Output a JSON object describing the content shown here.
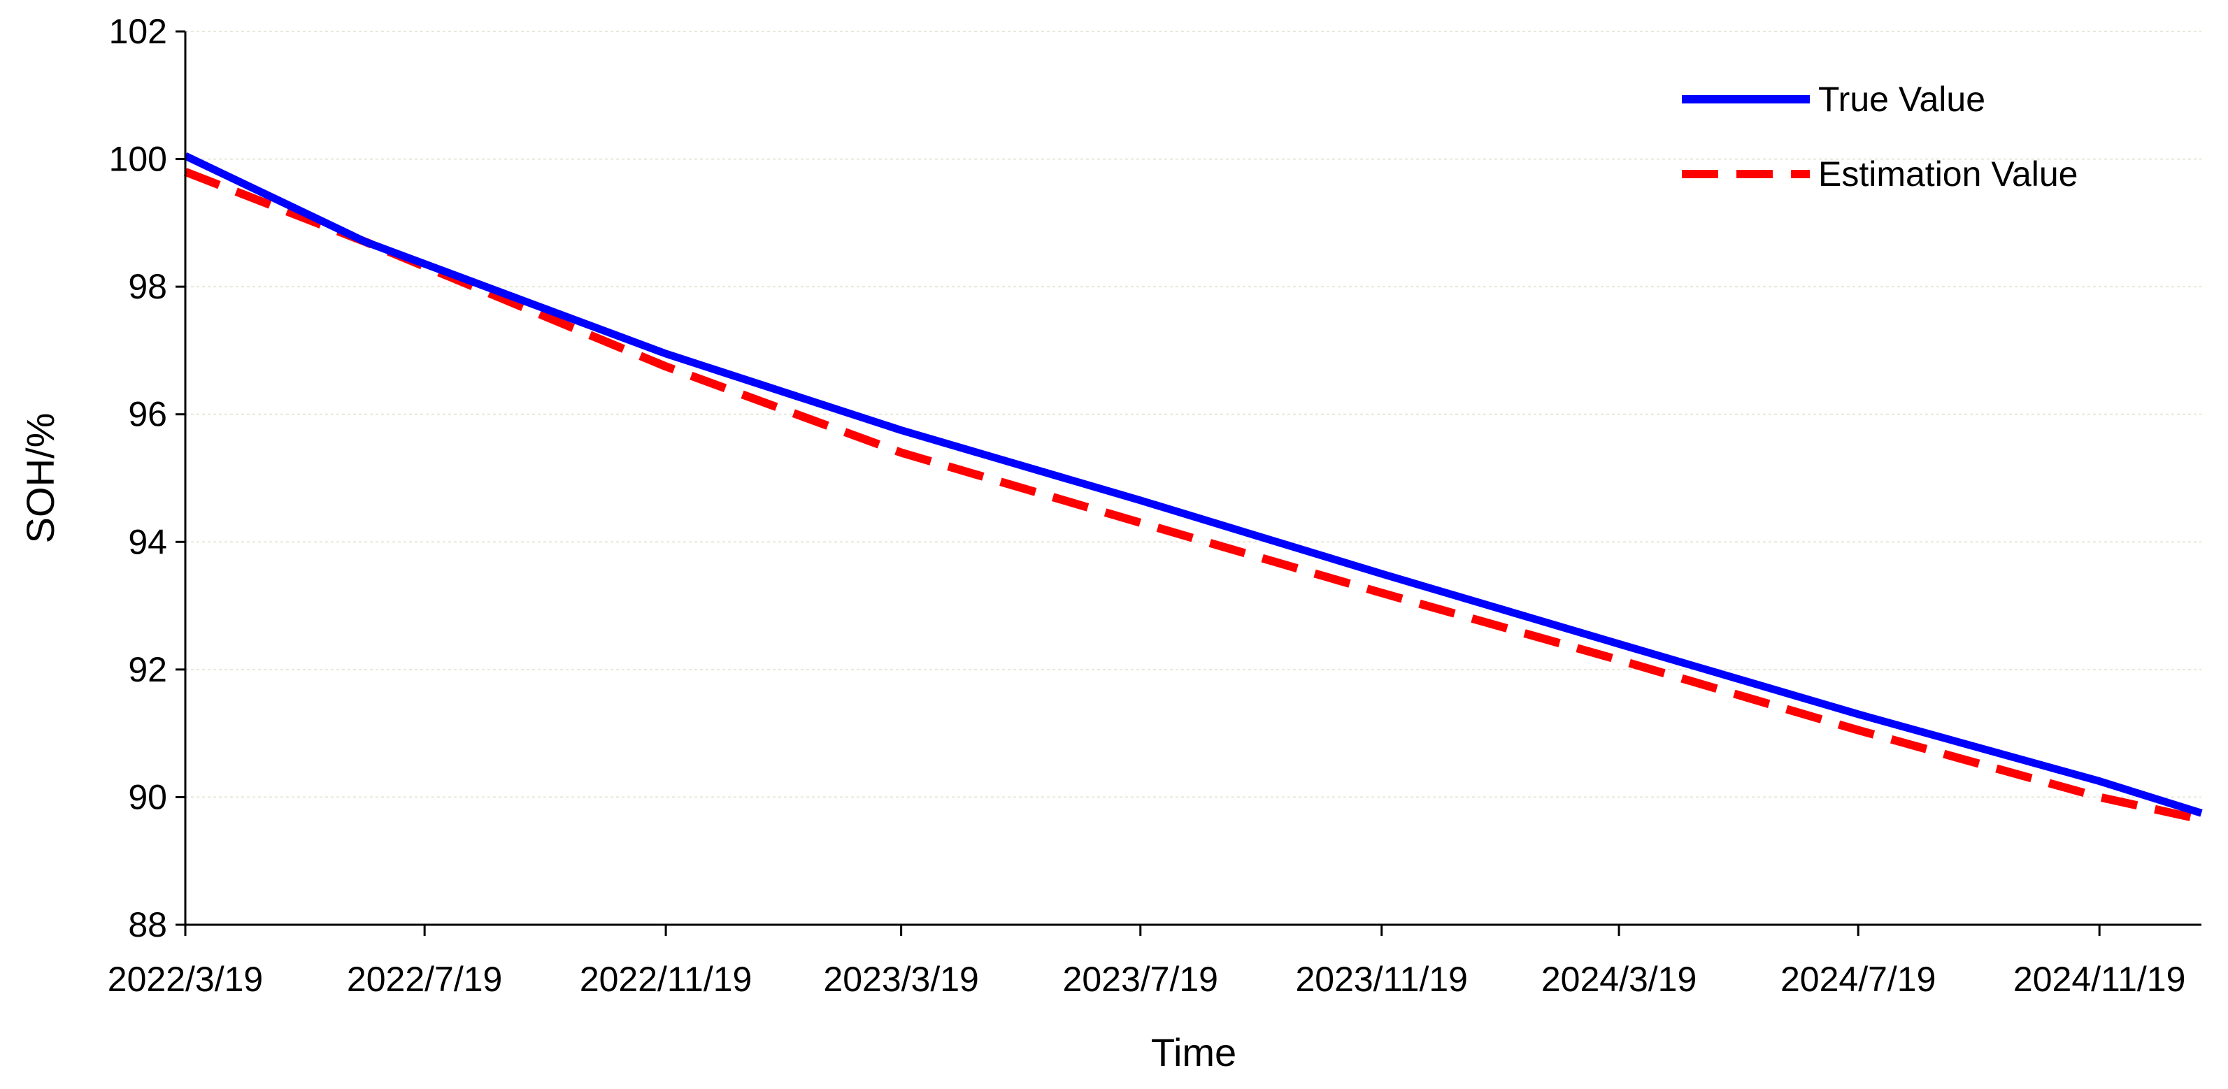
{
  "chart_data": {
    "type": "line",
    "title": "",
    "xlabel": "Time",
    "ylabel": "SOH/%",
    "x_ticks": [
      "2022/3/19",
      "2022/7/19",
      "2022/11/19",
      "2023/3/19",
      "2023/7/19",
      "2023/11/19",
      "2024/3/19",
      "2024/7/19",
      "2024/11/19"
    ],
    "xlim": [
      "2022/3/19",
      "2025/1/10"
    ],
    "ylim": [
      88,
      102
    ],
    "y_ticks": [
      88,
      90,
      92,
      94,
      96,
      98,
      100,
      102
    ],
    "grid": "horizontal",
    "legend_position": "top-right",
    "series": [
      {
        "name": "True Value",
        "color": "#0000ff",
        "line_style": "solid",
        "points": [
          {
            "x": "2022/3/19",
            "y": 100.05
          },
          {
            "x": "2022/6/19",
            "y": 98.7
          },
          {
            "x": "2022/11/19",
            "y": 96.95
          },
          {
            "x": "2023/3/19",
            "y": 95.75
          },
          {
            "x": "2023/7/19",
            "y": 94.65
          },
          {
            "x": "2023/11/19",
            "y": 93.5
          },
          {
            "x": "2024/3/19",
            "y": 92.4
          },
          {
            "x": "2024/7/19",
            "y": 91.3
          },
          {
            "x": "2024/11/19",
            "y": 90.25
          },
          {
            "x": "2025/1/10",
            "y": 89.75
          }
        ]
      },
      {
        "name": "Estimation Value",
        "color": "#ff0000",
        "line_style": "dashed",
        "points": [
          {
            "x": "2022/3/19",
            "y": 99.8
          },
          {
            "x": "2022/6/19",
            "y": 98.7
          },
          {
            "x": "2022/11/19",
            "y": 96.75
          },
          {
            "x": "2023/3/19",
            "y": 95.4
          },
          {
            "x": "2023/7/19",
            "y": 94.3
          },
          {
            "x": "2023/11/19",
            "y": 93.2
          },
          {
            "x": "2024/3/19",
            "y": 92.15
          },
          {
            "x": "2024/7/19",
            "y": 91.05
          },
          {
            "x": "2024/11/19",
            "y": 90.0
          },
          {
            "x": "2025/1/10",
            "y": 89.65
          }
        ]
      }
    ]
  }
}
